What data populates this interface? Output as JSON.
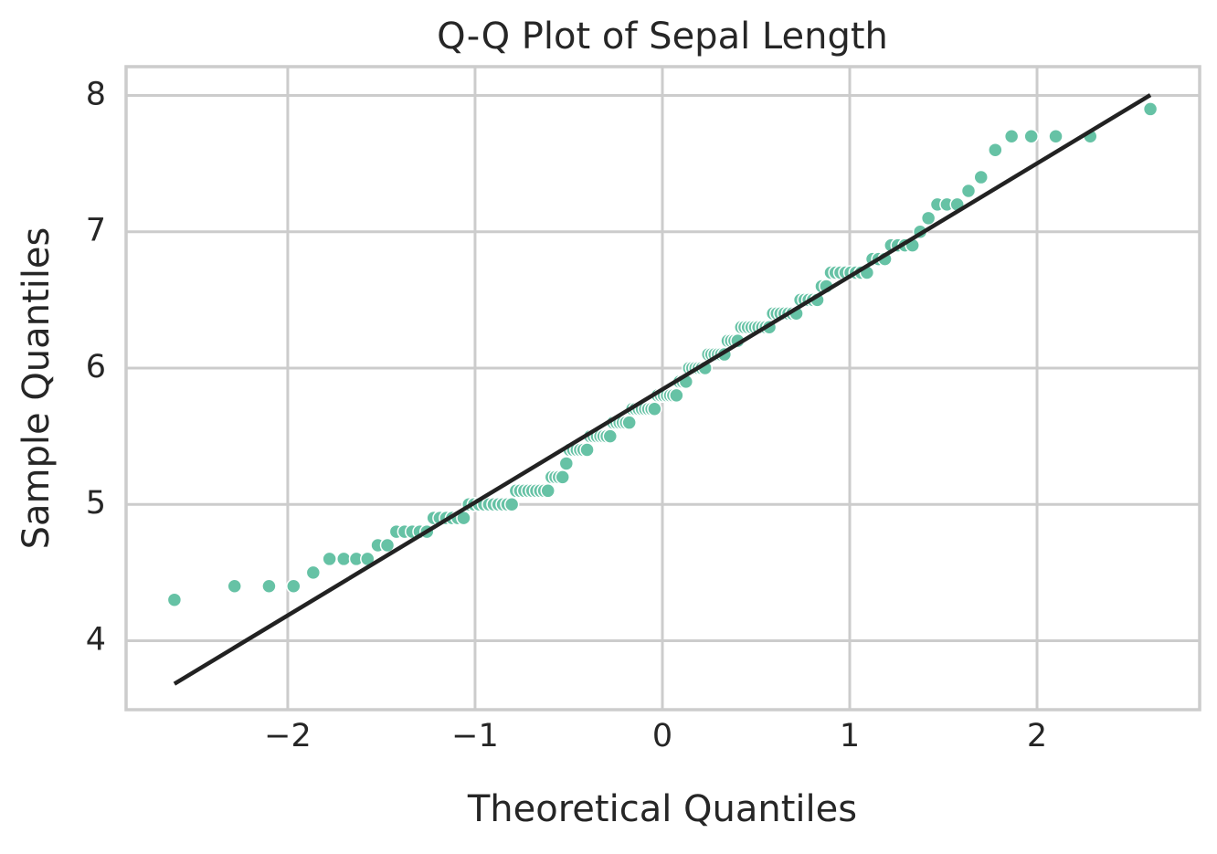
{
  "chart_data": {
    "type": "scatter",
    "title": "Q-Q Plot of Sepal Length",
    "x_label": "Theoretical Quantiles",
    "y_label": "Sample Quantiles",
    "xlim": [
      -2.863,
      2.868
    ],
    "ylim": [
      3.494,
      8.211
    ],
    "xticks": [
      {
        "value": -2,
        "label": "−2"
      },
      {
        "value": -1,
        "label": "−1"
      },
      0,
      1,
      2
    ],
    "yticks": [
      4,
      5,
      6,
      7,
      8
    ],
    "grid": true,
    "series": [
      {
        "color": "#66c2a5",
        "x": [
          -2.605,
          -2.284,
          -2.1,
          -1.969,
          -1.864,
          -1.777,
          -1.701,
          -1.634,
          -1.574,
          -1.519,
          -1.468,
          -1.42,
          -1.376,
          -1.335,
          -1.295,
          -1.257,
          -1.221,
          -1.188,
          -1.154,
          -1.122,
          -1.092,
          -1.061,
          -1.033,
          -1.005,
          -0.978,
          -0.951,
          -0.925,
          -0.9,
          -0.875,
          -0.851,
          -0.827,
          -0.804,
          -0.781,
          -0.759,
          -0.737,
          -0.715,
          -0.694,
          -0.673,
          -0.652,
          -0.631,
          -0.611,
          -0.591,
          -0.571,
          -0.552,
          -0.533,
          -0.513,
          -0.495,
          -0.476,
          -0.457,
          -0.439,
          -0.421,
          -0.402,
          -0.385,
          -0.367,
          -0.349,
          -0.331,
          -0.314,
          -0.297,
          -0.279,
          -0.262,
          -0.245,
          -0.228,
          -0.211,
          -0.194,
          -0.177,
          -0.16,
          -0.143,
          -0.126,
          -0.109,
          -0.092,
          -0.075,
          -0.058,
          -0.042,
          -0.025,
          -0.008,
          0.008,
          0.025,
          0.042,
          0.058,
          0.075,
          0.092,
          0.109,
          0.126,
          0.143,
          0.16,
          0.177,
          0.194,
          0.211,
          0.228,
          0.245,
          0.262,
          0.279,
          0.297,
          0.314,
          0.331,
          0.349,
          0.367,
          0.385,
          0.402,
          0.421,
          0.439,
          0.457,
          0.476,
          0.495,
          0.513,
          0.533,
          0.552,
          0.571,
          0.591,
          0.611,
          0.631,
          0.652,
          0.673,
          0.694,
          0.715,
          0.737,
          0.759,
          0.781,
          0.804,
          0.827,
          0.851,
          0.875,
          0.9,
          0.925,
          0.951,
          0.978,
          1.005,
          1.033,
          1.061,
          1.092,
          1.122,
          1.154,
          1.188,
          1.221,
          1.257,
          1.295,
          1.335,
          1.376,
          1.42,
          1.468,
          1.519,
          1.574,
          1.634,
          1.701,
          1.777,
          1.864,
          1.969,
          2.1,
          2.284,
          2.605
        ],
        "values": [
          4.3,
          4.4,
          4.4,
          4.4,
          4.5,
          4.6,
          4.6,
          4.6,
          4.6,
          4.7,
          4.7,
          4.8,
          4.8,
          4.8,
          4.8,
          4.8,
          4.9,
          4.9,
          4.9,
          4.9,
          4.9,
          4.9,
          5.0,
          5.0,
          5.0,
          5.0,
          5.0,
          5.0,
          5.0,
          5.0,
          5.0,
          5.0,
          5.1,
          5.1,
          5.1,
          5.1,
          5.1,
          5.1,
          5.1,
          5.1,
          5.1,
          5.2,
          5.2,
          5.2,
          5.2,
          5.3,
          5.4,
          5.4,
          5.4,
          5.4,
          5.4,
          5.4,
          5.5,
          5.5,
          5.5,
          5.5,
          5.5,
          5.5,
          5.5,
          5.6,
          5.6,
          5.6,
          5.6,
          5.6,
          5.6,
          5.7,
          5.7,
          5.7,
          5.7,
          5.7,
          5.7,
          5.7,
          5.7,
          5.8,
          5.8,
          5.8,
          5.8,
          5.8,
          5.8,
          5.8,
          5.9,
          5.9,
          5.9,
          6.0,
          6.0,
          6.0,
          6.0,
          6.0,
          6.0,
          6.1,
          6.1,
          6.1,
          6.1,
          6.1,
          6.1,
          6.2,
          6.2,
          6.2,
          6.2,
          6.3,
          6.3,
          6.3,
          6.3,
          6.3,
          6.3,
          6.3,
          6.3,
          6.3,
          6.4,
          6.4,
          6.4,
          6.4,
          6.4,
          6.4,
          6.4,
          6.5,
          6.5,
          6.5,
          6.5,
          6.5,
          6.6,
          6.6,
          6.7,
          6.7,
          6.7,
          6.7,
          6.7,
          6.7,
          6.7,
          6.7,
          6.8,
          6.8,
          6.8,
          6.9,
          6.9,
          6.9,
          6.9,
          7.0,
          7.1,
          7.2,
          7.2,
          7.2,
          7.3,
          7.4,
          7.6,
          7.7,
          7.7,
          7.7,
          7.7,
          7.9
        ]
      }
    ],
    "fit_line": {
      "color": "#222222",
      "x": [
        -2.605,
        2.605
      ],
      "y": [
        3.684,
        8.003
      ]
    }
  }
}
